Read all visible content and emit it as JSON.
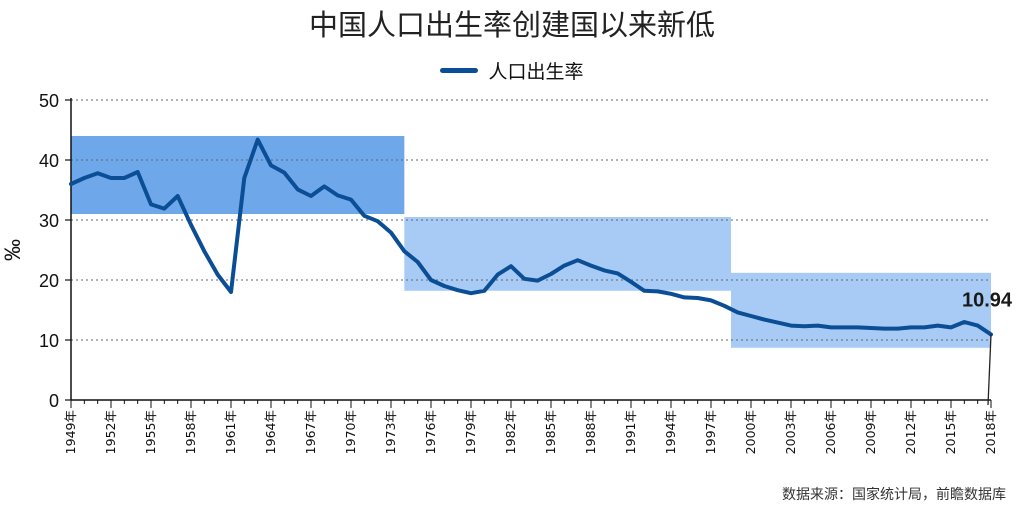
{
  "colors": {
    "line": "#0b4e96",
    "band_dark": "#6ea8ea",
    "band_light": "#a7cbf4",
    "grid": "#666666"
  },
  "chart_data": {
    "type": "line",
    "title": "中国人口出生率创建国以来新低",
    "legend": {
      "label": "人口出生率",
      "position": "top-center"
    },
    "ylabel": "‰",
    "ylim": [
      0,
      50
    ],
    "yticks": [
      0,
      10,
      20,
      30,
      40,
      50
    ],
    "grid": "horizontal-dotted",
    "xlim": [
      1949,
      2018
    ],
    "x_tick_labels": [
      "1949年",
      "1952年",
      "1955年",
      "1958年",
      "1961年",
      "1964年",
      "1967年",
      "1970年",
      "1973年",
      "1976年",
      "1979年",
      "1982年",
      "1985年",
      "1988年",
      "1991年",
      "1994年",
      "1997年",
      "2000年",
      "2003年",
      "2006年",
      "2009年",
      "2012年",
      "2015年",
      "2018年"
    ],
    "x_tick_years": [
      1949,
      1952,
      1955,
      1958,
      1961,
      1964,
      1967,
      1970,
      1973,
      1976,
      1979,
      1982,
      1985,
      1988,
      1991,
      1994,
      1997,
      2000,
      2003,
      2006,
      2009,
      2012,
      2015,
      2018
    ],
    "series": [
      {
        "name": "人口出生率",
        "x": [
          1949,
          1950,
          1951,
          1952,
          1953,
          1954,
          1955,
          1956,
          1957,
          1958,
          1959,
          1960,
          1961,
          1962,
          1963,
          1964,
          1965,
          1966,
          1967,
          1968,
          1969,
          1970,
          1971,
          1972,
          1973,
          1974,
          1975,
          1976,
          1977,
          1978,
          1979,
          1980,
          1981,
          1982,
          1983,
          1984,
          1985,
          1986,
          1987,
          1988,
          1989,
          1990,
          1991,
          1992,
          1993,
          1994,
          1995,
          1996,
          1997,
          1998,
          1999,
          2000,
          2001,
          2002,
          2003,
          2004,
          2005,
          2006,
          2007,
          2008,
          2009,
          2010,
          2011,
          2012,
          2013,
          2014,
          2015,
          2016,
          2017,
          2018
        ],
        "values": [
          36.0,
          37.0,
          37.8,
          37.0,
          37.0,
          38.0,
          32.6,
          31.9,
          34.0,
          29.2,
          24.8,
          20.9,
          18.0,
          37.0,
          43.4,
          39.1,
          37.9,
          35.1,
          34.0,
          35.6,
          34.1,
          33.4,
          30.7,
          29.8,
          27.9,
          24.8,
          23.0,
          20.0,
          19.0,
          18.3,
          17.8,
          18.2,
          20.9,
          22.3,
          20.2,
          19.9,
          21.0,
          22.4,
          23.3,
          22.4,
          21.6,
          21.1,
          19.7,
          18.2,
          18.1,
          17.7,
          17.1,
          17.0,
          16.6,
          15.7,
          14.6,
          14.0,
          13.4,
          12.9,
          12.4,
          12.3,
          12.4,
          12.1,
          12.1,
          12.1,
          12.0,
          11.9,
          11.9,
          12.1,
          12.1,
          12.4,
          12.1,
          13.0,
          12.4,
          10.94
        ]
      }
    ],
    "bands": [
      {
        "x0": 1949,
        "x1": 1974,
        "y0": 31,
        "y1": 44,
        "shade": "dark"
      },
      {
        "x0": 1974,
        "x1": 1998.5,
        "y0": 18.2,
        "y1": 30.5,
        "shade": "light"
      },
      {
        "x0": 1998.5,
        "x1": 2018,
        "y0": 8.7,
        "y1": 21.2,
        "shade": "light"
      }
    ],
    "annotation": {
      "text": "10.94",
      "x": 2018,
      "y": 10.94
    }
  },
  "source": "数据来源：国家统计局，前瞻数据库"
}
